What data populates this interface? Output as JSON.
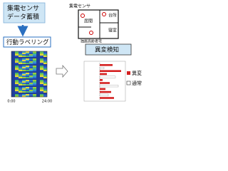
{
  "steps": [
    {
      "label": [
        "集電センサ",
        "データ蓄積"
      ]
    },
    {
      "label": "行動ラベリング"
    },
    {
      "label": "異変検知"
    }
  ],
  "floor_plan": {
    "sensor_label": "集電センサ",
    "house_label": "独居高齢者宅",
    "rooms": [
      "台所",
      "寝室",
      "居間"
    ]
  },
  "heatmap": {
    "x_labels": [
      "0:00",
      "24:00"
    ]
  },
  "legend": [
    "異変",
    "通常"
  ]
}
